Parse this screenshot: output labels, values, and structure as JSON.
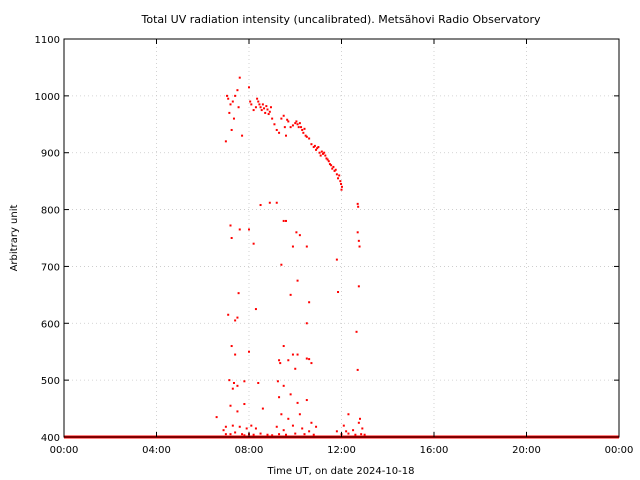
{
  "chart_data": {
    "type": "scatter",
    "title": "Total UV radiation intensity (uncalibrated). Metsähovi Radio Observatory",
    "xlabel": "Time UT, on date 2024-10-18",
    "ylabel": "Arbitrary unit",
    "xlim": [
      0,
      24
    ],
    "ylim": [
      400,
      1100
    ],
    "x_ticks": [
      0,
      4,
      8,
      12,
      16,
      20,
      24
    ],
    "x_tick_labels": [
      "00:00",
      "04:00",
      "08:00",
      "12:00",
      "16:00",
      "20:00",
      "00:00"
    ],
    "y_ticks": [
      400,
      500,
      600,
      700,
      800,
      900,
      1000,
      1100
    ],
    "y_tick_labels": [
      "400",
      "500",
      "600",
      "700",
      "800",
      "900",
      "1000",
      "1100"
    ],
    "grid": true,
    "series_color": "#ff0000",
    "baseline_value": 400,
    "points": [
      [
        7.0,
        920
      ],
      [
        7.05,
        1000
      ],
      [
        7.1,
        995
      ],
      [
        7.15,
        970
      ],
      [
        7.2,
        985
      ],
      [
        7.25,
        940
      ],
      [
        7.3,
        990
      ],
      [
        7.35,
        960
      ],
      [
        7.4,
        1000
      ],
      [
        7.5,
        1010
      ],
      [
        7.55,
        980
      ],
      [
        7.6,
        1032
      ],
      [
        7.7,
        930
      ],
      [
        8.0,
        1015
      ],
      [
        8.05,
        990
      ],
      [
        8.1,
        985
      ],
      [
        8.2,
        975
      ],
      [
        8.3,
        980
      ],
      [
        8.35,
        995
      ],
      [
        8.4,
        990
      ],
      [
        8.45,
        985
      ],
      [
        8.5,
        980
      ],
      [
        8.55,
        975
      ],
      [
        8.6,
        985
      ],
      [
        8.65,
        978
      ],
      [
        8.7,
        970
      ],
      [
        8.75,
        982
      ],
      [
        8.8,
        976
      ],
      [
        8.85,
        968
      ],
      [
        8.9,
        972
      ],
      [
        8.95,
        980
      ],
      [
        9.0,
        960
      ],
      [
        9.1,
        950
      ],
      [
        9.2,
        940
      ],
      [
        9.3,
        935
      ],
      [
        9.4,
        960
      ],
      [
        9.5,
        965
      ],
      [
        9.55,
        945
      ],
      [
        9.6,
        930
      ],
      [
        9.65,
        958
      ],
      [
        9.7,
        955
      ],
      [
        9.8,
        945
      ],
      [
        9.9,
        948
      ],
      [
        10.0,
        952
      ],
      [
        10.05,
        955
      ],
      [
        10.1,
        950
      ],
      [
        10.15,
        945
      ],
      [
        10.2,
        952
      ],
      [
        10.25,
        945
      ],
      [
        10.3,
        940
      ],
      [
        10.35,
        935
      ],
      [
        10.4,
        942
      ],
      [
        10.45,
        930
      ],
      [
        10.5,
        928
      ],
      [
        10.6,
        925
      ],
      [
        10.7,
        915
      ],
      [
        10.8,
        910
      ],
      [
        10.85,
        912
      ],
      [
        10.9,
        905
      ],
      [
        10.95,
        908
      ],
      [
        11.0,
        910
      ],
      [
        11.05,
        900
      ],
      [
        11.1,
        895
      ],
      [
        11.15,
        902
      ],
      [
        11.2,
        898
      ],
      [
        11.25,
        900
      ],
      [
        11.3,
        895
      ],
      [
        11.35,
        890
      ],
      [
        11.4,
        888
      ],
      [
        11.45,
        885
      ],
      [
        11.5,
        880
      ],
      [
        11.55,
        878
      ],
      [
        11.6,
        872
      ],
      [
        11.65,
        875
      ],
      [
        11.7,
        868
      ],
      [
        11.75,
        870
      ],
      [
        11.8,
        862
      ],
      [
        11.85,
        855
      ],
      [
        11.9,
        860
      ],
      [
        11.95,
        850
      ],
      [
        11.98,
        845
      ],
      [
        12.0,
        835
      ],
      [
        12.02,
        840
      ],
      [
        12.7,
        810
      ],
      [
        12.72,
        805
      ],
      [
        12.75,
        745
      ],
      [
        12.78,
        735
      ],
      [
        12.7,
        760
      ],
      [
        7.2,
        772
      ],
      [
        7.25,
        750
      ],
      [
        7.6,
        765
      ],
      [
        8.0,
        765
      ],
      [
        8.2,
        740
      ],
      [
        8.5,
        808
      ],
      [
        8.9,
        812
      ],
      [
        9.2,
        812
      ],
      [
        9.5,
        780
      ],
      [
        9.6,
        780
      ],
      [
        9.9,
        735
      ],
      [
        10.05,
        760
      ],
      [
        10.2,
        755
      ],
      [
        10.5,
        735
      ],
      [
        11.8,
        712
      ],
      [
        12.75,
        665
      ],
      [
        8.3,
        625
      ],
      [
        7.1,
        615
      ],
      [
        7.4,
        605
      ],
      [
        7.5,
        610
      ],
      [
        7.55,
        653
      ],
      [
        9.4,
        703
      ],
      [
        9.8,
        650
      ],
      [
        10.1,
        675
      ],
      [
        10.5,
        600
      ],
      [
        10.6,
        637
      ],
      [
        11.85,
        655
      ],
      [
        12.65,
        585
      ],
      [
        7.25,
        560
      ],
      [
        7.4,
        545
      ],
      [
        8.0,
        550
      ],
      [
        9.3,
        535
      ],
      [
        9.35,
        530
      ],
      [
        9.5,
        560
      ],
      [
        9.7,
        535
      ],
      [
        9.9,
        545
      ],
      [
        10.0,
        520
      ],
      [
        10.1,
        545
      ],
      [
        10.5,
        538
      ],
      [
        10.6,
        537
      ],
      [
        10.7,
        530
      ],
      [
        12.7,
        518
      ],
      [
        7.15,
        500
      ],
      [
        7.3,
        485
      ],
      [
        7.35,
        495
      ],
      [
        7.5,
        490
      ],
      [
        7.8,
        498
      ],
      [
        8.4,
        495
      ],
      [
        9.25,
        498
      ],
      [
        9.5,
        490
      ],
      [
        9.8,
        475
      ],
      [
        10.1,
        460
      ],
      [
        10.5,
        465
      ],
      [
        9.3,
        470
      ],
      [
        7.2,
        455
      ],
      [
        7.5,
        445
      ],
      [
        7.8,
        458
      ],
      [
        8.6,
        450
      ],
      [
        9.4,
        440
      ],
      [
        9.7,
        432
      ],
      [
        10.2,
        440
      ],
      [
        10.7,
        425
      ],
      [
        12.8,
        432
      ],
      [
        12.75,
        425
      ],
      [
        12.3,
        440
      ],
      [
        12.1,
        420
      ],
      [
        6.6,
        435
      ],
      [
        6.9,
        412
      ],
      [
        7.0,
        418
      ],
      [
        7.3,
        420
      ],
      [
        7.6,
        418
      ],
      [
        7.9,
        415
      ],
      [
        8.1,
        420
      ],
      [
        8.3,
        415
      ],
      [
        9.2,
        418
      ],
      [
        9.5,
        412
      ],
      [
        9.9,
        420
      ],
      [
        10.3,
        415
      ],
      [
        10.6,
        410
      ],
      [
        10.9,
        418
      ],
      [
        11.8,
        410
      ],
      [
        12.2,
        410
      ],
      [
        12.5,
        412
      ],
      [
        12.9,
        415
      ],
      [
        7.0,
        405
      ],
      [
        7.2,
        405
      ],
      [
        7.4,
        408
      ],
      [
        7.7,
        405
      ],
      [
        7.8,
        403
      ],
      [
        8.0,
        405
      ],
      [
        8.2,
        404
      ],
      [
        8.5,
        406
      ],
      [
        8.8,
        404
      ],
      [
        9.0,
        403
      ],
      [
        9.3,
        405
      ],
      [
        9.6,
        404
      ],
      [
        10.0,
        406
      ],
      [
        10.4,
        405
      ],
      [
        10.8,
        404
      ],
      [
        12.0,
        405
      ],
      [
        12.3,
        406
      ],
      [
        12.6,
        404
      ],
      [
        12.85,
        405
      ],
      [
        13.0,
        404
      ]
    ]
  }
}
